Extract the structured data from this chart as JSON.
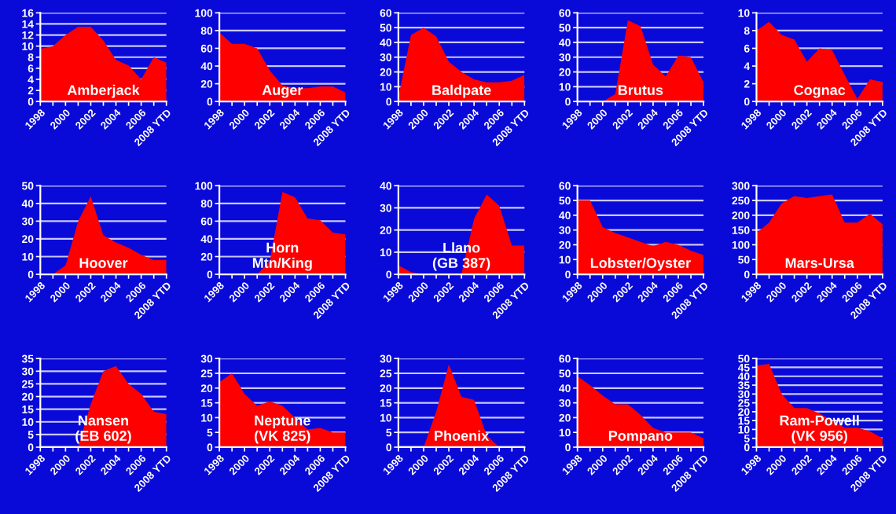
{
  "chart_data": [
    {
      "type": "area",
      "title": "Amberjack",
      "categories": [
        "1998",
        null,
        "2000",
        null,
        "2002",
        null,
        "2004",
        null,
        "2006",
        null,
        "2008 YTD"
      ],
      "values": [
        9.5,
        10,
        12,
        13.5,
        13.5,
        11,
        7.5,
        6.5,
        4,
        8,
        7
      ],
      "color": "#ff0000",
      "ylim": [
        0,
        16
      ],
      "yticks": [
        0,
        2,
        4,
        6,
        8,
        10,
        12,
        14,
        16
      ],
      "grid": "y"
    },
    {
      "type": "area",
      "title": "Auger",
      "categories": [
        "1998",
        null,
        "2000",
        null,
        "2002",
        null,
        "2004",
        null,
        "2006",
        null,
        "2008 YTD"
      ],
      "values": [
        78,
        65,
        65,
        60,
        35,
        18,
        15,
        15,
        17,
        17,
        10
      ],
      "color": "#ff0000",
      "ylim": [
        0,
        100
      ],
      "yticks": [
        0,
        20,
        40,
        60,
        80,
        100
      ],
      "grid": "y"
    },
    {
      "type": "area",
      "title": "Baldpate",
      "categories": [
        "1998",
        null,
        "2000",
        null,
        "2002",
        null,
        "2004",
        null,
        "2006",
        null,
        "2008 YTD"
      ],
      "values": [
        3,
        45,
        50,
        44,
        27,
        20,
        15,
        13,
        13,
        14,
        18
      ],
      "color": "#ff0000",
      "ylim": [
        0,
        60
      ],
      "yticks": [
        0,
        10,
        20,
        30,
        40,
        50,
        60
      ],
      "grid": "y"
    },
    {
      "type": "area",
      "title": "Brutus",
      "categories": [
        "1998",
        null,
        "2000",
        null,
        "2002",
        null,
        "2004",
        null,
        "2006",
        null,
        "2008 YTD"
      ],
      "values": [
        0,
        0,
        0,
        5,
        55,
        51,
        25,
        17,
        31,
        30,
        13
      ],
      "color": "#ff0000",
      "ylim": [
        0,
        60
      ],
      "yticks": [
        0,
        10,
        20,
        30,
        40,
        50,
        60
      ],
      "grid": "y"
    },
    {
      "type": "area",
      "title": "Cognac",
      "categories": [
        "1998",
        null,
        "2000",
        null,
        "2002",
        null,
        "2004",
        null,
        "2006",
        null,
        "2008 YTD"
      ],
      "values": [
        8,
        9,
        7.5,
        7,
        4.5,
        6,
        5.8,
        3,
        0.3,
        2.5,
        2.2
      ],
      "color": "#ff0000",
      "ylim": [
        0,
        10
      ],
      "yticks": [
        0,
        2,
        4,
        6,
        8,
        10
      ],
      "grid": "y"
    },
    {
      "type": "area",
      "title": "Hoover",
      "categories": [
        "1998",
        null,
        "2000",
        null,
        "2002",
        null,
        "2004",
        null,
        "2006",
        null,
        "2008 YTD"
      ],
      "values": [
        0,
        0,
        5,
        30,
        44,
        22,
        18,
        15,
        11,
        8,
        8
      ],
      "color": "#ff0000",
      "ylim": [
        0,
        50
      ],
      "yticks": [
        0,
        10,
        20,
        30,
        40,
        50
      ],
      "grid": "y"
    },
    {
      "type": "area",
      "title": "Horn\nMtn/King",
      "categories": [
        "1998",
        null,
        "2000",
        null,
        "2002",
        null,
        "2004",
        null,
        "2006",
        null,
        "2008 YTD"
      ],
      "values": [
        0,
        0,
        0,
        0,
        15,
        93,
        87,
        63,
        61,
        47,
        45
      ],
      "color": "#ff0000",
      "ylim": [
        0,
        100
      ],
      "yticks": [
        0,
        20,
        40,
        60,
        80,
        100
      ],
      "grid": "y"
    },
    {
      "type": "area",
      "title": "Llano\n(GB 387)",
      "categories": [
        "1998",
        null,
        "2000",
        null,
        "2002",
        null,
        "2004",
        null,
        "2006",
        null,
        "2008 YTD"
      ],
      "values": [
        4,
        1,
        0,
        0,
        0,
        0,
        25,
        36,
        31,
        13,
        13
      ],
      "color": "#ff0000",
      "ylim": [
        0,
        40
      ],
      "yticks": [
        0,
        10,
        20,
        30,
        40
      ],
      "grid": "y"
    },
    {
      "type": "area",
      "title": "Lobster/Oyster",
      "categories": [
        "1998",
        null,
        "2000",
        null,
        "2002",
        null,
        "2004",
        null,
        "2006",
        null,
        "2008 YTD"
      ],
      "values": [
        50,
        50,
        32,
        28,
        25,
        22,
        19,
        22,
        20,
        16,
        13
      ],
      "color": "#ff0000",
      "ylim": [
        0,
        60
      ],
      "yticks": [
        0,
        10,
        20,
        30,
        40,
        50,
        60
      ],
      "grid": "y"
    },
    {
      "type": "area",
      "title": "Mars-Ursa",
      "categories": [
        "1998",
        null,
        "2000",
        null,
        "2002",
        null,
        "2004",
        null,
        "2006",
        null,
        "2008 YTD"
      ],
      "values": [
        140,
        175,
        240,
        265,
        258,
        265,
        270,
        175,
        175,
        205,
        170
      ],
      "color": "#ff0000",
      "ylim": [
        0,
        300
      ],
      "yticks": [
        0,
        50,
        100,
        150,
        200,
        250,
        300
      ],
      "grid": "y"
    },
    {
      "type": "area",
      "title": "Nansen\n(EB 602)",
      "categories": [
        "1998",
        null,
        "2000",
        null,
        "2002",
        null,
        "2004",
        null,
        "2006",
        null,
        "2008 YTD"
      ],
      "values": [
        0,
        0,
        0,
        0,
        17,
        30,
        32,
        25,
        21,
        14,
        13
      ],
      "color": "#ff0000",
      "ylim": [
        0,
        35
      ],
      "yticks": [
        0,
        5,
        10,
        15,
        20,
        25,
        30,
        35
      ],
      "grid": "y"
    },
    {
      "type": "area",
      "title": "Neptune\n(VK 825)",
      "categories": [
        "1998",
        null,
        "2000",
        null,
        "2002",
        null,
        "2004",
        null,
        "2006",
        null,
        "2008 YTD"
      ],
      "values": [
        22,
        25,
        18,
        14,
        15.5,
        14,
        10,
        6,
        6.5,
        5,
        5
      ],
      "color": "#ff0000",
      "ylim": [
        0,
        30
      ],
      "yticks": [
        0,
        5,
        10,
        15,
        20,
        25,
        30
      ],
      "grid": "y"
    },
    {
      "type": "area",
      "title": "Phoenix",
      "categories": [
        "1998",
        null,
        "2000",
        null,
        "2002",
        null,
        "2004",
        null,
        "2006",
        null,
        "2008 YTD"
      ],
      "values": [
        0,
        0,
        0,
        12,
        28,
        17,
        16,
        4,
        0,
        0,
        0
      ],
      "color": "#ff0000",
      "ylim": [
        0,
        30
      ],
      "yticks": [
        0,
        5,
        10,
        15,
        20,
        25,
        30
      ],
      "grid": "y"
    },
    {
      "type": "area",
      "title": "Pompano",
      "categories": [
        "1998",
        null,
        "2000",
        null,
        "2002",
        null,
        "2004",
        null,
        "2006",
        null,
        "2008 YTD"
      ],
      "values": [
        48,
        42,
        35,
        29,
        29,
        22,
        13,
        10,
        10,
        10,
        6
      ],
      "color": "#ff0000",
      "ylim": [
        0,
        60
      ],
      "yticks": [
        0,
        10,
        20,
        30,
        40,
        50,
        60
      ],
      "grid": "y"
    },
    {
      "type": "area",
      "title": "Ram-Powell\n(VK 956)",
      "categories": [
        "1998",
        null,
        "2000",
        null,
        "2002",
        null,
        "2004",
        null,
        "2006",
        null,
        "2008 YTD"
      ],
      "values": [
        46,
        47,
        30,
        22,
        22,
        19,
        15,
        11,
        11,
        9,
        5
      ],
      "color": "#ff0000",
      "ylim": [
        0,
        50
      ],
      "yticks": [
        0,
        5,
        10,
        15,
        20,
        25,
        30,
        35,
        40,
        45,
        50
      ],
      "grid": "y"
    }
  ]
}
